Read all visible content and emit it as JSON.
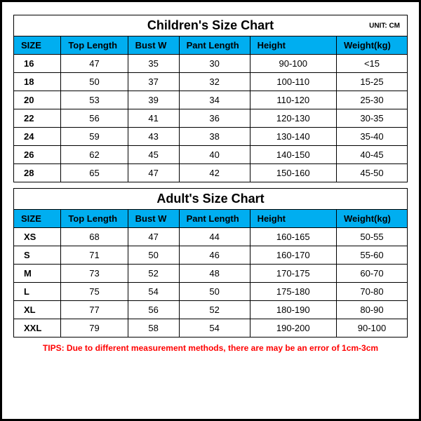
{
  "unit_label": "UNIT: CM",
  "columns": [
    "SIZE",
    "Top Length",
    "Bust W",
    "Pant Length",
    "Height",
    "Weight(kg)"
  ],
  "col_classes": [
    "col-size",
    "col-top",
    "col-bust",
    "col-pant",
    "col-height",
    "col-weight"
  ],
  "header_bg": "#00aef0",
  "border_color": "#000000",
  "children": {
    "title": "Children's Size Chart",
    "rows": [
      [
        "16",
        "47",
        "35",
        "30",
        "90-100",
        "<15"
      ],
      [
        "18",
        "50",
        "37",
        "32",
        "100-110",
        "15-25"
      ],
      [
        "20",
        "53",
        "39",
        "34",
        "110-120",
        "25-30"
      ],
      [
        "22",
        "56",
        "41",
        "36",
        "120-130",
        "30-35"
      ],
      [
        "24",
        "59",
        "43",
        "38",
        "130-140",
        "35-40"
      ],
      [
        "26",
        "62",
        "45",
        "40",
        "140-150",
        "40-45"
      ],
      [
        "28",
        "65",
        "47",
        "42",
        "150-160",
        "45-50"
      ]
    ]
  },
  "adult": {
    "title": "Adult's Size Chart",
    "rows": [
      [
        "XS",
        "68",
        "47",
        "44",
        "160-165",
        "50-55"
      ],
      [
        "S",
        "71",
        "50",
        "46",
        "160-170",
        "55-60"
      ],
      [
        "M",
        "73",
        "52",
        "48",
        "170-175",
        "60-70"
      ],
      [
        "L",
        "75",
        "54",
        "50",
        "175-180",
        "70-80"
      ],
      [
        "XL",
        "77",
        "56",
        "52",
        "180-190",
        "80-90"
      ],
      [
        "XXL",
        "79",
        "58",
        "54",
        "190-200",
        "90-100"
      ]
    ]
  },
  "tips": "TIPS: Due to different measurement methods, there are may be an error of 1cm-3cm"
}
